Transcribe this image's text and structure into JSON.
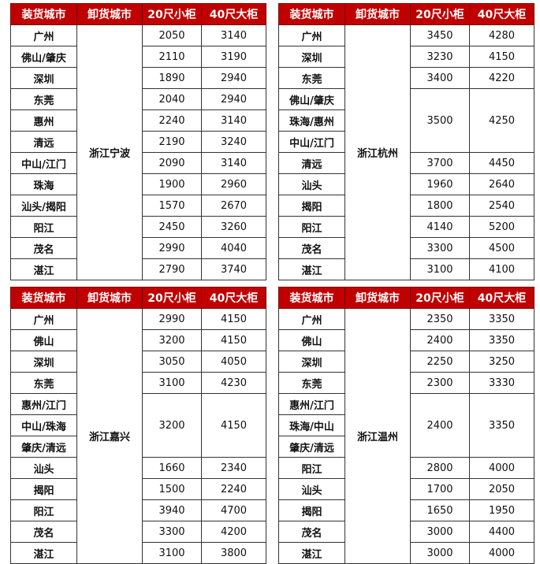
{
  "headers": [
    "装货城市",
    "卸货城市",
    "20尺小柜",
    "40尺大柜"
  ],
  "colors": {
    "header_bg": "#c00000",
    "header_text": "#ffffff",
    "destination_text": "#e00000"
  },
  "tables": [
    {
      "destination": "浙江宁波",
      "groups": [
        {
          "loads": [
            "广州"
          ],
          "p20": "2050",
          "p40": "3140"
        },
        {
          "loads": [
            "佛山/肇庆"
          ],
          "p20": "2110",
          "p40": "3190"
        },
        {
          "loads": [
            "深圳"
          ],
          "p20": "1890",
          "p40": "2940"
        },
        {
          "loads": [
            "东莞"
          ],
          "p20": "2040",
          "p40": "2940"
        },
        {
          "loads": [
            "惠州"
          ],
          "p20": "2240",
          "p40": "3140"
        },
        {
          "loads": [
            "清远"
          ],
          "p20": "2190",
          "p40": "3240"
        },
        {
          "loads": [
            "中山/江门"
          ],
          "p20": "2090",
          "p40": "3140"
        },
        {
          "loads": [
            "珠海"
          ],
          "p20": "1900",
          "p40": "2960"
        },
        {
          "loads": [
            "汕头/揭阳"
          ],
          "p20": "1570",
          "p40": "2670"
        },
        {
          "loads": [
            "阳江"
          ],
          "p20": "2450",
          "p40": "3260"
        },
        {
          "loads": [
            "茂名"
          ],
          "p20": "2990",
          "p40": "4040"
        },
        {
          "loads": [
            "湛江"
          ],
          "p20": "2790",
          "p40": "3740"
        }
      ]
    },
    {
      "destination": "浙江杭州",
      "groups": [
        {
          "loads": [
            "广州"
          ],
          "p20": "3450",
          "p40": "4280"
        },
        {
          "loads": [
            "深圳"
          ],
          "p20": "3230",
          "p40": "4150"
        },
        {
          "loads": [
            "东莞"
          ],
          "p20": "3400",
          "p40": "4220"
        },
        {
          "loads": [
            "佛山/肇庆",
            "珠海/惠州",
            "中山/江门"
          ],
          "p20": "3500",
          "p40": "4250"
        },
        {
          "loads": [
            "清远"
          ],
          "p20": "3700",
          "p40": "4450"
        },
        {
          "loads": [
            "汕头"
          ],
          "p20": "1960",
          "p40": "2640"
        },
        {
          "loads": [
            "揭阳"
          ],
          "p20": "1800",
          "p40": "2540"
        },
        {
          "loads": [
            "阳江"
          ],
          "p20": "4140",
          "p40": "5200"
        },
        {
          "loads": [
            "茂名"
          ],
          "p20": "3300",
          "p40": "4500"
        },
        {
          "loads": [
            "湛江"
          ],
          "p20": "3100",
          "p40": "4100"
        }
      ]
    },
    {
      "destination": "浙江嘉兴",
      "groups": [
        {
          "loads": [
            "广州"
          ],
          "p20": "2990",
          "p40": "4150"
        },
        {
          "loads": [
            "佛山"
          ],
          "p20": "3200",
          "p40": "4150"
        },
        {
          "loads": [
            "深圳"
          ],
          "p20": "3050",
          "p40": "4050"
        },
        {
          "loads": [
            "东莞"
          ],
          "p20": "3100",
          "p40": "4230"
        },
        {
          "loads": [
            "惠州/江门",
            "中山/珠海",
            "肇庆/清远"
          ],
          "p20": "3200",
          "p40": "4150"
        },
        {
          "loads": [
            "汕头"
          ],
          "p20": "1660",
          "p40": "2340"
        },
        {
          "loads": [
            "揭阳"
          ],
          "p20": "1500",
          "p40": "2240"
        },
        {
          "loads": [
            "阳江"
          ],
          "p20": "3940",
          "p40": "4700"
        },
        {
          "loads": [
            "茂名"
          ],
          "p20": "3300",
          "p40": "4200"
        },
        {
          "loads": [
            "湛江"
          ],
          "p20": "3100",
          "p40": "3800"
        }
      ]
    },
    {
      "destination": "浙江温州",
      "groups": [
        {
          "loads": [
            "广州"
          ],
          "p20": "2350",
          "p40": "3350"
        },
        {
          "loads": [
            "佛山"
          ],
          "p20": "2400",
          "p40": "3350"
        },
        {
          "loads": [
            "深圳"
          ],
          "p20": "2250",
          "p40": "3250"
        },
        {
          "loads": [
            "东莞"
          ],
          "p20": "2300",
          "p40": "3330"
        },
        {
          "loads": [
            "惠州/江门",
            "珠海/中山",
            "肇庆/清远"
          ],
          "p20": "2400",
          "p40": "3350"
        },
        {
          "loads": [
            "阳江"
          ],
          "p20": "2800",
          "p40": "4000"
        },
        {
          "loads": [
            "汕头"
          ],
          "p20": "1700",
          "p40": "2050"
        },
        {
          "loads": [
            "揭阳"
          ],
          "p20": "1650",
          "p40": "1950"
        },
        {
          "loads": [
            "茂名"
          ],
          "p20": "3000",
          "p40": "4400"
        },
        {
          "loads": [
            "湛江"
          ],
          "p20": "3000",
          "p40": "4000"
        }
      ]
    }
  ]
}
